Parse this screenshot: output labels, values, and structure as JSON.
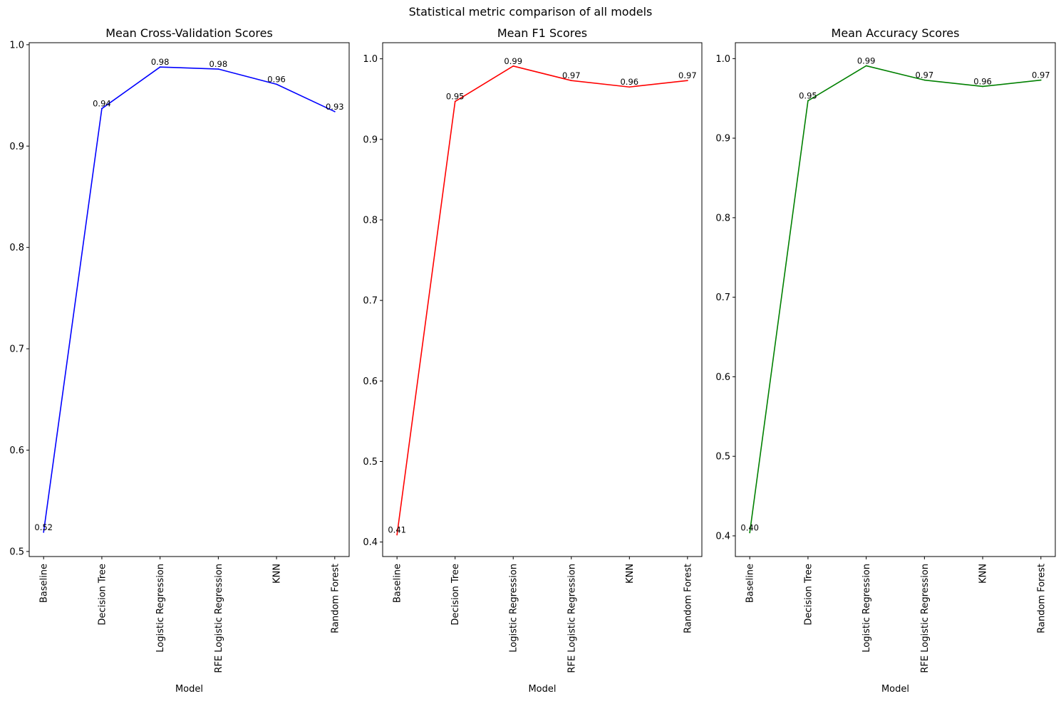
{
  "figure": {
    "suptitle": "Statistical metric comparison of all models"
  },
  "chart_data": [
    {
      "type": "line",
      "title": "Mean Cross-Validation Scores",
      "xlabel": "Model",
      "ylabel": "",
      "color": "#0000ff",
      "categories": [
        "Baseline",
        "Decision Tree",
        "Logistic Regression",
        "RFE Logistic Regression",
        "KNN",
        "Random Forest"
      ],
      "values": [
        0.519,
        0.937,
        0.978,
        0.976,
        0.961,
        0.934
      ],
      "data_labels": [
        "0.52",
        "0.94",
        "0.98",
        "0.98",
        "0.96",
        "0.93"
      ],
      "ylim": [
        0.495,
        1.002
      ],
      "yticks": [
        0.5,
        0.6,
        0.7,
        0.8,
        0.9,
        1.0
      ],
      "ytick_labels": [
        "0.5",
        "0.6",
        "0.7",
        "0.8",
        "0.9",
        "1.0"
      ],
      "grid": false,
      "legend": "none"
    },
    {
      "type": "line",
      "title": "Mean F1 Scores",
      "xlabel": "Model",
      "ylabel": "",
      "color": "#ff0000",
      "categories": [
        "Baseline",
        "Decision Tree",
        "Logistic Regression",
        "RFE Logistic Regression",
        "KNN",
        "Random Forest"
      ],
      "values": [
        0.409,
        0.947,
        0.991,
        0.973,
        0.965,
        0.973
      ],
      "data_labels": [
        "0.41",
        "0.95",
        "0.99",
        "0.97",
        "0.96",
        "0.97"
      ],
      "ylim": [
        0.382,
        1.02
      ],
      "yticks": [
        0.4,
        0.5,
        0.6,
        0.7,
        0.8,
        0.9,
        1.0
      ],
      "ytick_labels": [
        "0.4",
        "0.5",
        "0.6",
        "0.7",
        "0.8",
        "0.9",
        "1.0"
      ],
      "grid": false,
      "legend": "none"
    },
    {
      "type": "line",
      "title": "Mean Accuracy Scores",
      "xlabel": "Model",
      "ylabel": "",
      "color": "#008000",
      "categories": [
        "Baseline",
        "Decision Tree",
        "Logistic Regression",
        "RFE Logistic Regression",
        "KNN",
        "Random Forest"
      ],
      "values": [
        0.404,
        0.947,
        0.991,
        0.973,
        0.965,
        0.973
      ],
      "data_labels": [
        "0.40",
        "0.95",
        "0.99",
        "0.97",
        "0.96",
        "0.97"
      ],
      "ylim": [
        0.374,
        1.02
      ],
      "yticks": [
        0.4,
        0.5,
        0.6,
        0.7,
        0.8,
        0.9,
        1.0
      ],
      "ytick_labels": [
        "0.4",
        "0.5",
        "0.6",
        "0.7",
        "0.8",
        "0.9",
        "1.0"
      ],
      "grid": false,
      "legend": "none"
    }
  ]
}
